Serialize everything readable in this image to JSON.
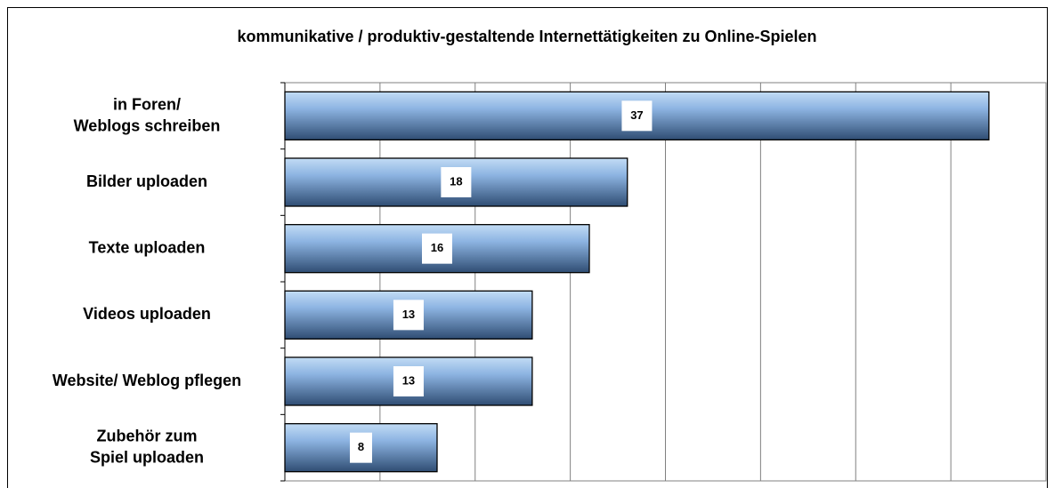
{
  "chart_data": {
    "type": "barh",
    "title": "kommunikative / produktiv-gestaltende Internettätigkeiten zu Online-Spielen",
    "categories": [
      "in Foren/ Weblogs schreiben",
      "Bilder uploaden",
      "Texte uploaden",
      "Videos uploaden",
      "Website/ Weblog pflegen",
      "Zubehör zum Spiel uploaden"
    ],
    "values": [
      37,
      18,
      16,
      13,
      13,
      8
    ],
    "color": "#6f97c8",
    "xlim": [
      0,
      40
    ],
    "xticks": [
      0,
      5,
      10,
      15,
      20,
      25,
      30,
      35,
      40
    ],
    "grid": true
  }
}
